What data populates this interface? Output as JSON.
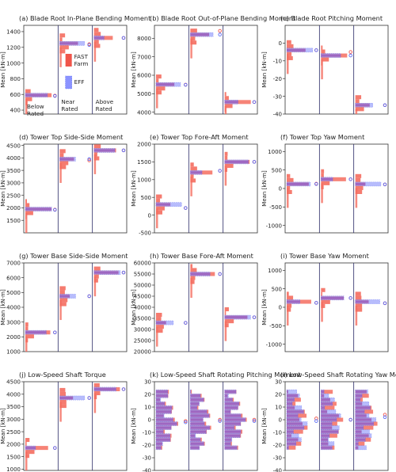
{
  "figure": {
    "ylabel": "Mean [kN-m]",
    "colors": {
      "fast": "#f0554a",
      "fast_fill": "#f46d5f",
      "eff": "#5c6cf5",
      "eff_fill": "#9aa0fb",
      "overlap": "#8b3fb5",
      "sep": "#2a2a66"
    },
    "legend": [
      {
        "label": "FAST\nFarm",
        "color": "#f0554a"
      },
      {
        "label": "EFF",
        "color": "#8b93ff"
      }
    ],
    "conditions": [
      "Below\nRated",
      "Near\nRated",
      "Above\nRated"
    ]
  },
  "chart_data": [
    {
      "id": "a",
      "title": "(a) Blade Root In-Plane Bending Moment",
      "type": "bar",
      "ylim": [
        350,
        1480
      ],
      "yticks": [
        400,
        600,
        800,
        1000,
        1200,
        1400
      ],
      "groups": [
        {
          "fast": 590,
          "eff": 590,
          "marker_fast": 585,
          "marker_eff": 580
        },
        {
          "fast": 1250,
          "eff": 1230,
          "marker_fast": 1240,
          "marker_eff": 1230
        },
        {
          "fast": 1320,
          "eff": 1320,
          "marker_fast": 1320,
          "marker_eff": 1320
        }
      ],
      "condition_labels": true,
      "legend": true
    },
    {
      "id": "b",
      "title": "(b) Blade Root Out-of-Plane Bending Moment",
      "type": "bar",
      "ylim": [
        3900,
        8700
      ],
      "yticks": [
        4000,
        5000,
        6000,
        7000,
        8000
      ],
      "groups": [
        {
          "fast": 5500,
          "eff": 5500,
          "marker_fast": 5490,
          "marker_eff": 5480
        },
        {
          "fast": 8200,
          "eff": 8200,
          "marker_fast": 8400,
          "marker_eff": 8200
        },
        {
          "fast": 4550,
          "eff": 4550,
          "marker_fast": 4550,
          "marker_eff": 4550
        }
      ]
    },
    {
      "id": "c",
      "title": "(c) Blade Root Pitching Moment",
      "type": "bar",
      "ylim": [
        -40,
        10
      ],
      "yticks": [
        -40,
        -30,
        -20,
        -10,
        0
      ],
      "groups": [
        {
          "fast": -4,
          "eff": -4,
          "marker_fast": -4,
          "marker_eff": -4
        },
        {
          "fast": -7,
          "eff": -7,
          "marker_fast": -5,
          "marker_eff": -7
        },
        {
          "fast": -35,
          "eff": -35,
          "marker_fast": -35,
          "marker_eff": -35
        }
      ]
    },
    {
      "id": "d",
      "title": "(d) Tower Top Side-Side Moment",
      "type": "bar",
      "ylim": [
        1000,
        4550
      ],
      "yticks": [
        1500,
        2000,
        2500,
        3000,
        3500,
        4000,
        4500
      ],
      "groups": [
        {
          "fast": 1950,
          "eff": 1950,
          "marker_fast": 1930,
          "marker_eff": 1920
        },
        {
          "fast": 3950,
          "eff": 3950,
          "marker_fast": 3900,
          "marker_eff": 3950
        },
        {
          "fast": 4300,
          "eff": 4300,
          "marker_fast": 4300,
          "marker_eff": 4300
        }
      ]
    },
    {
      "id": "e",
      "title": "(e) Tower Top Fore-Aft Moment",
      "type": "bar",
      "ylim": [
        -500,
        2000
      ],
      "yticks": [
        -500,
        0,
        500,
        1000,
        1500,
        2000
      ],
      "groups": [
        {
          "fast": 300,
          "eff": 300,
          "marker_fast": 200,
          "marker_eff": 200
        },
        {
          "fast": 1200,
          "eff": 1200,
          "marker_fast": 1250,
          "marker_eff": 1250
        },
        {
          "fast": 1500,
          "eff": 1500,
          "marker_fast": 1500,
          "marker_eff": 1500
        }
      ]
    },
    {
      "id": "f",
      "title": "(f) Tower Top Yaw Moment",
      "type": "bar",
      "ylim": [
        -1200,
        1200
      ],
      "yticks": [
        -1000,
        -500,
        0,
        500,
        1000
      ],
      "groups": [
        {
          "fast": 120,
          "eff": 120,
          "marker_fast": 130,
          "marker_eff": 120
        },
        {
          "fast": 250,
          "eff": 250,
          "marker_fast": 250,
          "marker_eff": 250
        },
        {
          "fast": 120,
          "eff": 120,
          "marker_fast": 110,
          "marker_eff": 110
        }
      ]
    },
    {
      "id": "g",
      "title": "(g) Tower Base Side-Side Moment",
      "type": "bar",
      "ylim": [
        1000,
        7000
      ],
      "yticks": [
        1000,
        2000,
        3000,
        4000,
        5000,
        6000,
        7000
      ],
      "groups": [
        {
          "fast": 2300,
          "eff": 2300,
          "marker_fast": 2300,
          "marker_eff": 2300
        },
        {
          "fast": 4750,
          "eff": 4750,
          "marker_fast": 4750,
          "marker_eff": 4750
        },
        {
          "fast": 6350,
          "eff": 6350,
          "marker_fast": 6350,
          "marker_eff": 6350
        }
      ]
    },
    {
      "id": "h",
      "title": "(h) Tower Base Fore-Aft Moment",
      "type": "bar",
      "ylim": [
        20000,
        60000
      ],
      "yticks": [
        20000,
        25000,
        30000,
        35000,
        40000,
        45000,
        50000,
        55000,
        60000
      ],
      "groups": [
        {
          "fast": 33000,
          "eff": 33000,
          "marker_fast": 33000,
          "marker_eff": 33000
        },
        {
          "fast": 55000,
          "eff": 55000,
          "marker_fast": 55000,
          "marker_eff": 55000
        },
        {
          "fast": 35500,
          "eff": 35500,
          "marker_fast": 35500,
          "marker_eff": 35500
        }
      ]
    },
    {
      "id": "i",
      "title": "(i) Tower Base Yaw Moment",
      "type": "bar",
      "ylim": [
        -1200,
        1200
      ],
      "yticks": [
        -1000,
        -500,
        0,
        500,
        1000
      ],
      "groups": [
        {
          "fast": 150,
          "eff": 150,
          "marker_fast": 120,
          "marker_eff": 120
        },
        {
          "fast": 250,
          "eff": 250,
          "marker_fast": 250,
          "marker_eff": 250
        },
        {
          "fast": 150,
          "eff": 150,
          "marker_fast": 110,
          "marker_eff": 110
        }
      ]
    },
    {
      "id": "j",
      "title": "(j) Low-Speed Shaft Torque",
      "type": "bar",
      "ylim": [
        950,
        4500
      ],
      "yticks": [
        1000,
        1500,
        2000,
        2500,
        3000,
        3500,
        4000,
        4500
      ],
      "groups": [
        {
          "fast": 1850,
          "eff": 1850,
          "marker_fast": 1850,
          "marker_eff": 1850
        },
        {
          "fast": 3850,
          "eff": 3850,
          "marker_fast": 3850,
          "marker_eff": 3850
        },
        {
          "fast": 4200,
          "eff": 4200,
          "marker_fast": 4200,
          "marker_eff": 4200
        }
      ]
    },
    {
      "id": "k",
      "title": "(k) Low-Speed Shaft Rotating Pitching Moment",
      "type": "bar",
      "ylim": [
        -40,
        30
      ],
      "yticks": [
        -40,
        -30,
        -20,
        -10,
        0,
        10,
        20,
        30
      ],
      "groups": [
        {
          "fast": 0,
          "eff": 0,
          "marker_fast": -1,
          "marker_eff": -2
        },
        {
          "fast": 0,
          "eff": 0,
          "marker_fast": 0,
          "marker_eff": -1
        },
        {
          "fast": 0,
          "eff": 0,
          "marker_fast": 0,
          "marker_eff": -1
        }
      ]
    },
    {
      "id": "l",
      "title": "(l) Low-Speed Shaft Rotating Yaw Moment",
      "type": "bar",
      "ylim": [
        -40,
        30
      ],
      "yticks": [
        -40,
        -30,
        -20,
        -10,
        0,
        10,
        20,
        30
      ],
      "groups": [
        {
          "fast": 0,
          "eff": 0,
          "marker_fast": 1,
          "marker_eff": -1
        },
        {
          "fast": 0,
          "eff": 0,
          "marker_fast": 0,
          "marker_eff": 0
        },
        {
          "fast": 0,
          "eff": 0,
          "marker_fast": 4,
          "marker_eff": 2
        }
      ]
    }
  ]
}
